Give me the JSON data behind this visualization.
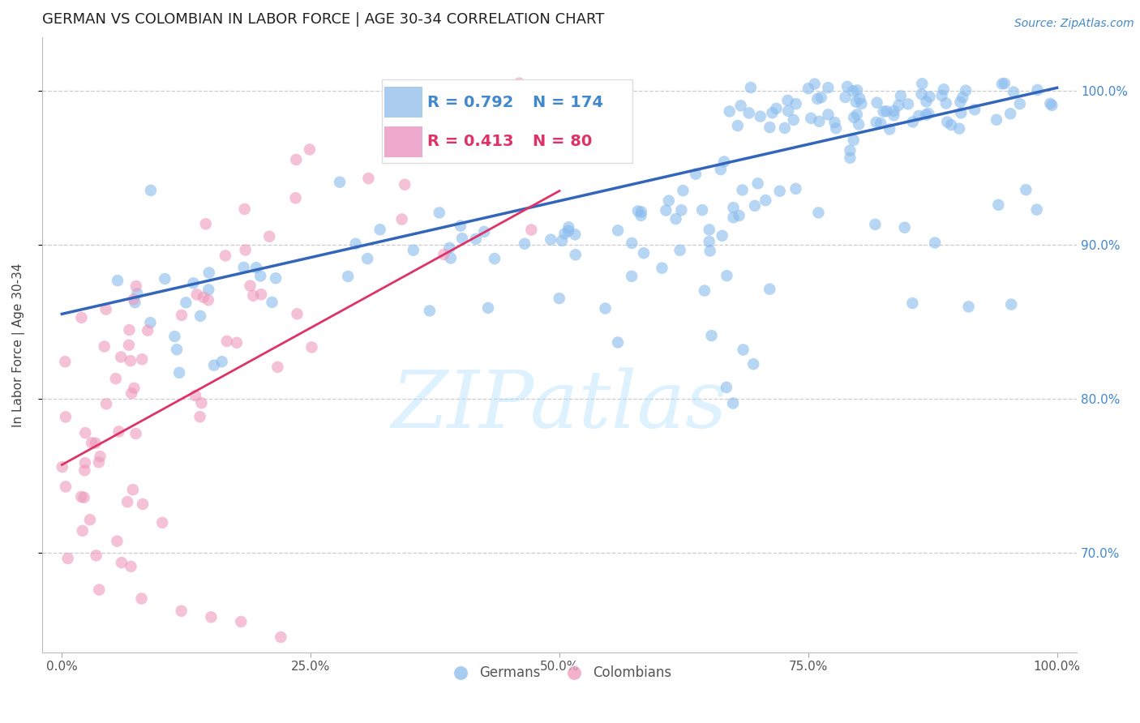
{
  "title": "GERMAN VS COLOMBIAN IN LABOR FORCE | AGE 30-34 CORRELATION CHART",
  "source_text": "Source: ZipAtlas.com",
  "ylabel": "In Labor Force | Age 30-34",
  "legend_labels": [
    "Germans",
    "Colombians"
  ],
  "legend_r_n": [
    {
      "R": "0.792",
      "N": "174",
      "color": "#6699cc"
    },
    {
      "R": "0.413",
      "N": "80",
      "color": "#ee6688"
    }
  ],
  "blue_color": "#88bbee",
  "pink_color": "#ee99bb",
  "blue_line_color": "#3366bb",
  "pink_line_color": "#dd3366",
  "watermark_text": "ZIPatlas",
  "xlim": [
    -0.02,
    1.02
  ],
  "ylim": [
    0.635,
    1.035
  ],
  "yticks": [
    0.7,
    0.8,
    0.9,
    1.0
  ],
  "xtick_vals": [
    0.0,
    0.25,
    0.5,
    0.75,
    1.0
  ],
  "xtick_labels": [
    "0.0%",
    "25.0%",
    "50.0%",
    "75.0%",
    "100.0%"
  ],
  "ytick_labels": [
    "70.0%",
    "80.0%",
    "90.0%",
    "100.0%"
  ],
  "blue_n": 174,
  "pink_n": 80,
  "title_fontsize": 13,
  "axis_label_fontsize": 11,
  "tick_fontsize": 11,
  "legend_fontsize": 14
}
